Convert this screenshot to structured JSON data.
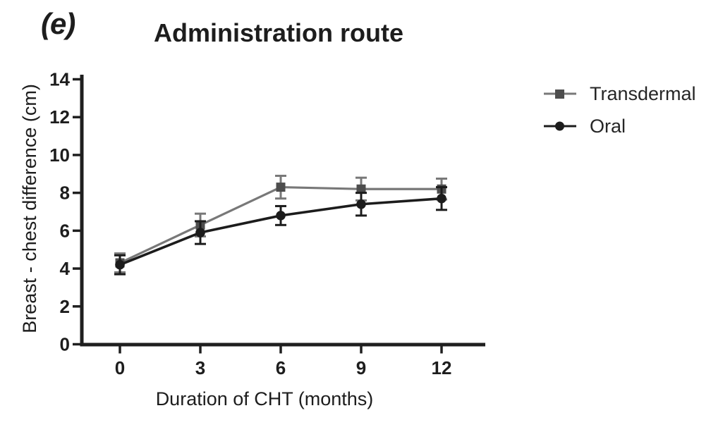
{
  "panel_label": "(e)",
  "colors": {
    "axis": "#1f1f1f",
    "text": "#1d1d1d",
    "background": "#ffffff"
  },
  "chart_data": {
    "type": "line",
    "title": "Administration route",
    "xlabel": "Duration of CHT (months)",
    "ylabel": "Breast - chest difference (cm)",
    "x": [
      0,
      3,
      6,
      9,
      12
    ],
    "xticks": [
      "0",
      "3",
      "6",
      "9",
      "12"
    ],
    "yticks": [
      "0",
      "2",
      "4",
      "6",
      "8",
      "10",
      "12",
      "14"
    ],
    "xlim": [
      0,
      13.6
    ],
    "ylim": [
      0,
      14
    ],
    "grid": false,
    "error_bars": true,
    "legend_position": "right-top",
    "series": [
      {
        "name": "Transdermal",
        "marker": "square",
        "line_color": "#787878",
        "marker_color": "#4d4d4d",
        "values": [
          4.3,
          6.3,
          8.3,
          8.2,
          8.2
        ],
        "errors": [
          0.5,
          0.6,
          0.6,
          0.6,
          0.55
        ]
      },
      {
        "name": "Oral",
        "marker": "circle",
        "line_color": "#1c1c1c",
        "marker_color": "#1c1c1c",
        "values": [
          4.2,
          5.9,
          6.8,
          7.4,
          7.7
        ],
        "errors": [
          0.5,
          0.6,
          0.5,
          0.6,
          0.6
        ]
      }
    ]
  }
}
